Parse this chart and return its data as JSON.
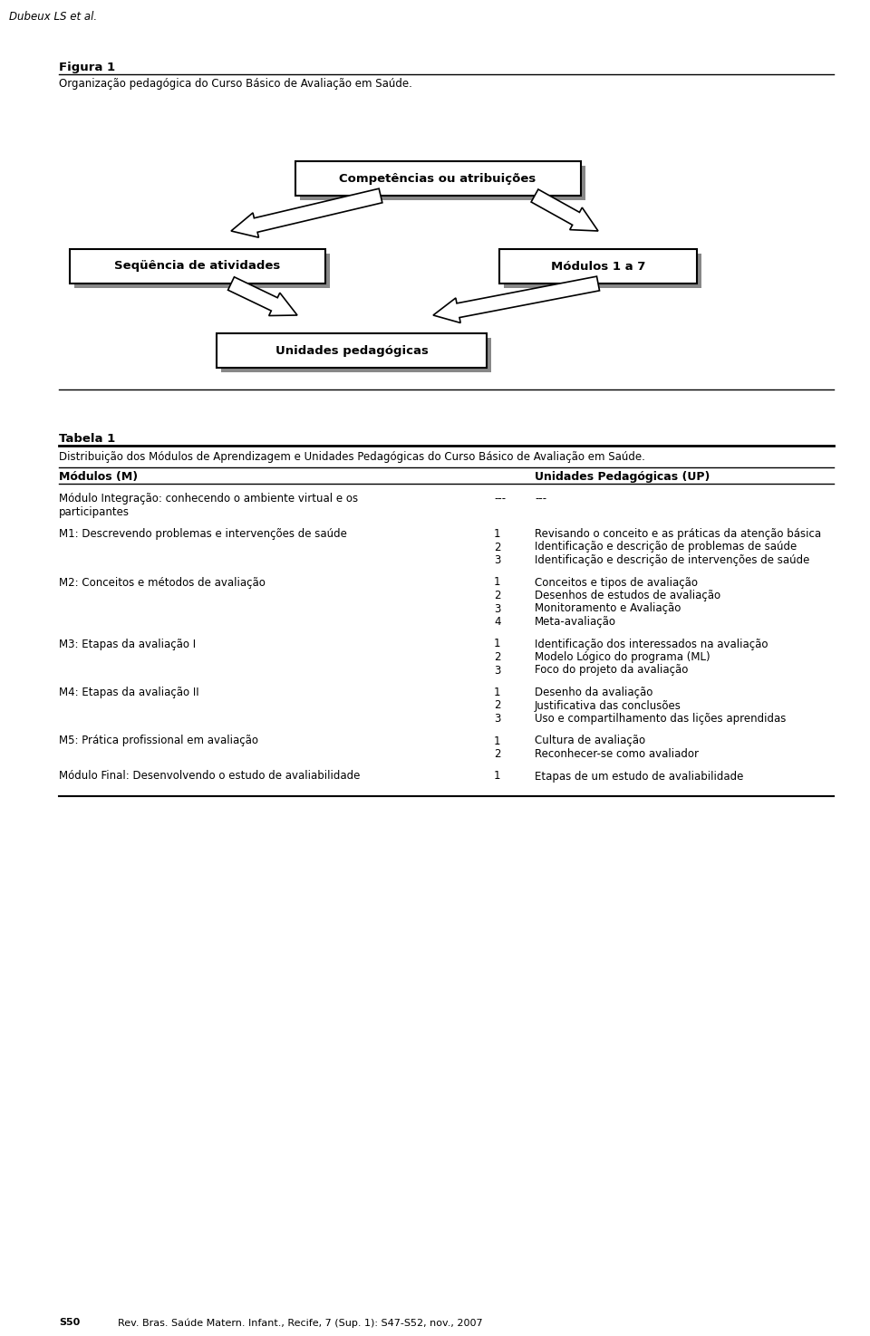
{
  "header_text": "Dubeux LS et al.",
  "figura_label": "Figura 1",
  "figura_caption": "Organização pedagógica do Curso Básico de Avaliação em Saúde.",
  "tabela_label": "Tabela 1",
  "tabela_caption": "Distribuição dos Módulos de Aprendizagem e Unidades Pedagógicas do Curso Básico de Avaliação em Saúde.",
  "col_header_left": "Módulos (M)",
  "col_header_right": "Unidades Pedagógicas (UP)",
  "footer_left": "S50",
  "footer_right": "Rev. Bras. Saúde Matern. Infant., Recife, 7 (Sup. 1): S47-S52, nov., 2007",
  "box_top_label": "Competências ou atribuições",
  "box_left_label": "Seqüência de atividades",
  "box_right_label": "Módulos 1 a 7",
  "box_bot_label": "Unidades pedagógicas",
  "table_rows": [
    {
      "module": "Módulo Integração: conhecendo o ambiente virtual e os\nparticipantes",
      "numbers": [
        "---"
      ],
      "units": [
        "---"
      ]
    },
    {
      "module": "M1: Descrevendo problemas e intervenções de saúde",
      "numbers": [
        "1",
        "2",
        "3"
      ],
      "units": [
        "Revisando o conceito e as práticas da atenção básica",
        "Identificação e descrição de problemas de saúde",
        "Identificação e descrição de intervenções de saúde"
      ]
    },
    {
      "module": "M2: Conceitos e métodos de avaliação",
      "numbers": [
        "1",
        "2",
        "3",
        "4"
      ],
      "units": [
        "Conceitos e tipos de avaliação",
        "Desenhos de estudos de avaliação",
        "Monitoramento e Avaliação",
        "Meta-avaliação"
      ]
    },
    {
      "module": "M3: Etapas da avaliação I",
      "numbers": [
        "1",
        "2",
        "3"
      ],
      "units": [
        "Identificação dos interessados na avaliação",
        "Modelo Lógico do programa (ML)",
        "Foco do projeto da avaliação"
      ]
    },
    {
      "module": "M4: Etapas da avaliação II",
      "numbers": [
        "1",
        "2",
        "3"
      ],
      "units": [
        "Desenho da avaliação",
        "Justificativa das conclusões",
        "Uso e compartilhamento das lições aprendidas"
      ]
    },
    {
      "module": "M5: Prática profissional em avaliação",
      "numbers": [
        "1",
        "2"
      ],
      "units": [
        "Cultura de avaliação",
        "Reconhecer-se como avaliador"
      ]
    },
    {
      "module": "Módulo Final: Desenvolvendo o estudo de avaliabilidade",
      "numbers": [
        "1"
      ],
      "units": [
        "Etapas de um estudo de avaliabilidade"
      ]
    }
  ],
  "bg_color": "#ffffff",
  "text_color": "#000000",
  "box_fill": "#ffffff",
  "box_edge": "#000000",
  "shadow_color": "#888888"
}
